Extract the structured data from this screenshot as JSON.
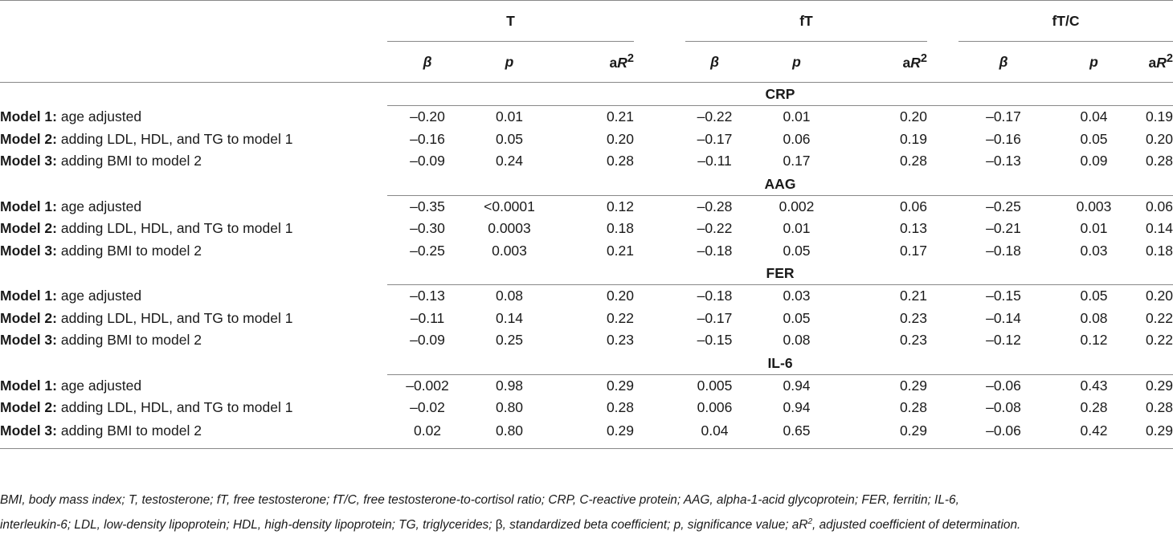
{
  "groups": [
    "T",
    "fT",
    "fT/C"
  ],
  "subheaders": {
    "beta": "β",
    "p": "p",
    "ar2_prefix": "a",
    "ar2_r": "R",
    "ar2_sup": "2"
  },
  "sections": [
    {
      "name": "CRP",
      "rows": [
        {
          "bold": "Model 1:",
          "text": " age adjusted",
          "vals": [
            "–0.20",
            "0.01",
            "0.21",
            "–0.22",
            "0.01",
            "0.20",
            "–0.17",
            "0.04",
            "0.19"
          ]
        },
        {
          "bold": "Model 2:",
          "text": " adding LDL, HDL, and TG to model 1",
          "vals": [
            "–0.16",
            "0.05",
            "0.20",
            "–0.17",
            "0.06",
            "0.19",
            "–0.16",
            "0.05",
            "0.20"
          ]
        },
        {
          "bold": "Model 3:",
          "text": " adding BMI to model 2",
          "vals": [
            "–0.09",
            "0.24",
            "0.28",
            "–0.11",
            "0.17",
            "0.28",
            "–0.13",
            "0.09",
            "0.28"
          ]
        }
      ]
    },
    {
      "name": "AAG",
      "rows": [
        {
          "bold": "Model 1:",
          "text": " age adjusted",
          "vals": [
            "–0.35",
            "<0.0001",
            "0.12",
            "–0.28",
            "0.002",
            "0.06",
            "–0.25",
            "0.003",
            "0.06"
          ]
        },
        {
          "bold": "Model 2:",
          "text": " adding LDL, HDL, and TG to model 1",
          "vals": [
            "–0.30",
            "0.0003",
            "0.18",
            "–0.22",
            "0.01",
            "0.13",
            "–0.21",
            "0.01",
            "0.14"
          ]
        },
        {
          "bold": "Model 3:",
          "text": " adding BMI to model 2",
          "vals": [
            "–0.25",
            "0.003",
            "0.21",
            "–0.18",
            "0.05",
            "0.17",
            "–0.18",
            "0.03",
            "0.18"
          ]
        }
      ]
    },
    {
      "name": "FER",
      "rows": [
        {
          "bold": "Model 1:",
          "text": " age adjusted",
          "vals": [
            "–0.13",
            "0.08",
            "0.20",
            "–0.18",
            "0.03",
            "0.21",
            "–0.15",
            "0.05",
            "0.20"
          ]
        },
        {
          "bold": "Model 2:",
          "text": " adding LDL, HDL, and TG to model 1",
          "vals": [
            "–0.11",
            "0.14",
            "0.22",
            "–0.17",
            "0.05",
            "0.23",
            "–0.14",
            "0.08",
            "0.22"
          ]
        },
        {
          "bold": "Model 3:",
          "text": " adding BMI to model 2",
          "vals": [
            "–0.09",
            "0.25",
            "0.23",
            "–0.15",
            "0.08",
            "0.23",
            "–0.12",
            "0.12",
            "0.22"
          ]
        }
      ]
    },
    {
      "name": "IL-6",
      "rows": [
        {
          "bold": "Model 1:",
          "text": " age adjusted",
          "vals": [
            "–0.002",
            "0.98",
            "0.29",
            "0.005",
            "0.94",
            "0.29",
            "–0.06",
            "0.43",
            "0.29"
          ]
        },
        {
          "bold": "Model 2:",
          "text": " adding LDL, HDL, and TG to model 1",
          "vals": [
            "–0.02",
            "0.80",
            "0.28",
            "0.006",
            "0.94",
            "0.28",
            "–0.08",
            "0.28",
            "0.28"
          ]
        },
        {
          "bold": "Model 3:",
          "text": " adding BMI to model 2",
          "vals": [
            "0.02",
            "0.80",
            "0.29",
            "0.04",
            "0.65",
            "0.29",
            "–0.06",
            "0.42",
            "0.29"
          ]
        }
      ]
    }
  ],
  "footnote": {
    "line1": "BMI, body mass index; T, testosterone; fT, free testosterone; fT/C, free testosterone-to-cortisol ratio; CRP, C-reactive protein; AAG, alpha-1-acid glycoprotein; FER, ferritin; IL-6,",
    "line2_pre": "interleukin-6; LDL, low-density lipoprotein; HDL, high-density lipoprotein; TG, triglycerides; ",
    "line2_beta": "β",
    "line2_mid": ", standardized beta coefficient; p, significance value; aR",
    "line2_sup": "2",
    "line2_post": ", adjusted coefficient of determination."
  }
}
